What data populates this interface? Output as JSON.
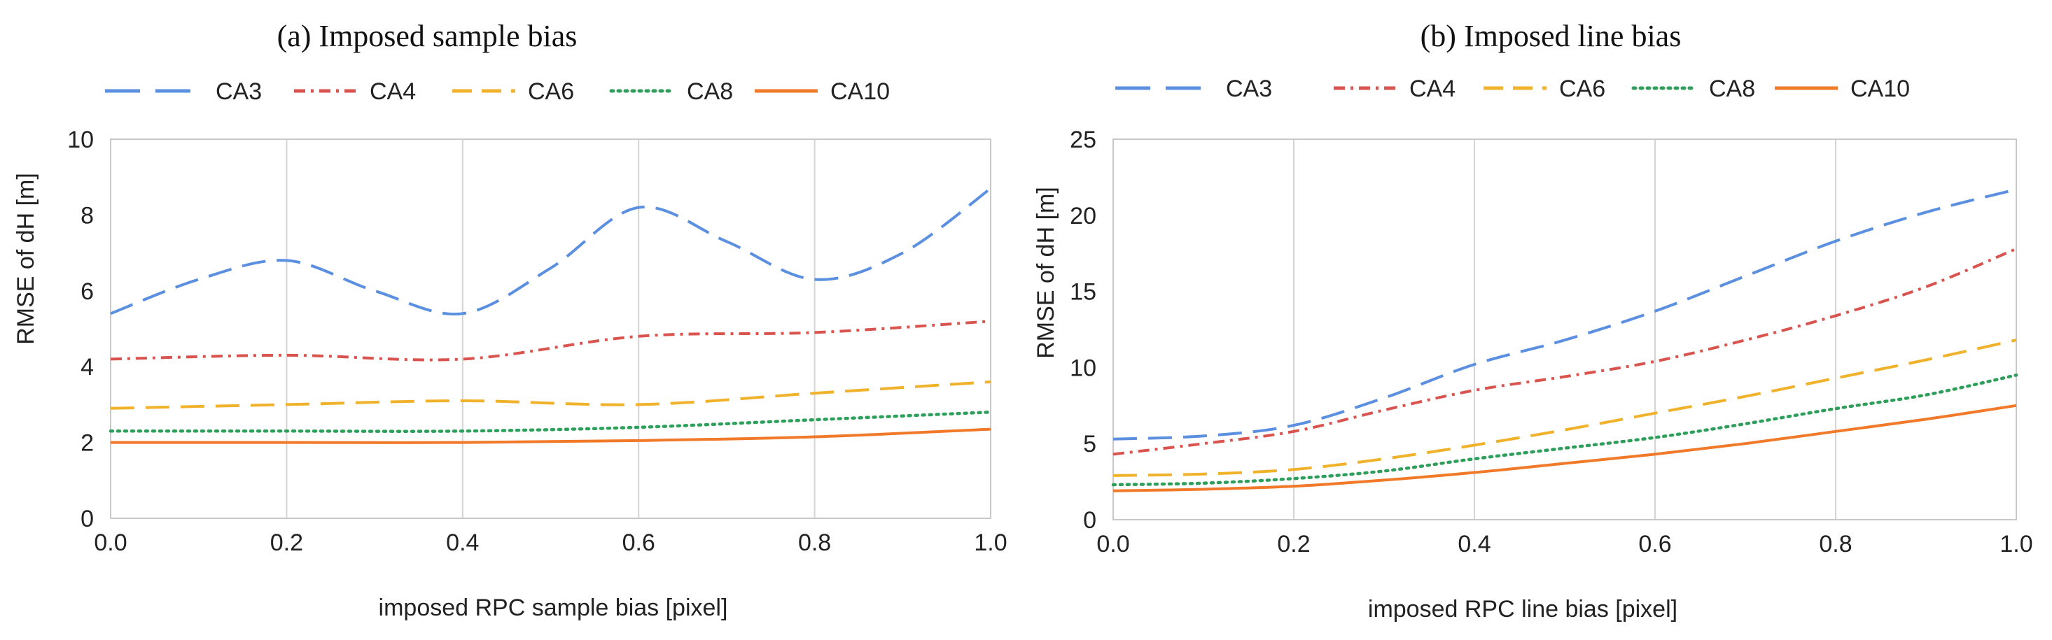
{
  "chart_data": [
    {
      "type": "line",
      "title": "(a) Imposed sample bias",
      "xlabel": "imposed RPC sample bias [pixel]",
      "ylabel": "RMSE of dH [m]",
      "xlim": [
        0.0,
        1.0
      ],
      "ylim": [
        0,
        10
      ],
      "x_ticks": [
        "0.0",
        "0.2",
        "0.4",
        "0.6",
        "0.8",
        "1.0"
      ],
      "y_ticks": [
        "0",
        "2",
        "4",
        "6",
        "8",
        "10"
      ],
      "grid": "vertical",
      "legend_position": "top",
      "series": [
        {
          "name": "CA3",
          "color": "#5b8fe0",
          "style": "dashed",
          "x": [
            0.0,
            0.1,
            0.2,
            0.3,
            0.4,
            0.5,
            0.6,
            0.7,
            0.8,
            0.9,
            1.0
          ],
          "y": [
            5.4,
            6.3,
            6.8,
            6.0,
            5.4,
            6.6,
            8.2,
            7.3,
            6.3,
            7.0,
            8.7
          ]
        },
        {
          "name": "CA4",
          "color": "#d9534f",
          "style": "dash-dot",
          "x": [
            0.0,
            0.2,
            0.4,
            0.6,
            0.8,
            1.0
          ],
          "y": [
            4.2,
            4.3,
            4.2,
            4.8,
            4.9,
            5.2
          ]
        },
        {
          "name": "CA6",
          "color": "#f0b22a",
          "style": "dashed",
          "x": [
            0.0,
            0.2,
            0.4,
            0.6,
            0.8,
            1.0
          ],
          "y": [
            2.9,
            3.0,
            3.1,
            3.0,
            3.3,
            3.6
          ]
        },
        {
          "name": "CA8",
          "color": "#2e9e5b",
          "style": "dotted",
          "x": [
            0.0,
            0.2,
            0.4,
            0.6,
            0.8,
            1.0
          ],
          "y": [
            2.3,
            2.3,
            2.3,
            2.4,
            2.6,
            2.8
          ]
        },
        {
          "name": "CA10",
          "color": "#f07a2a",
          "style": "solid",
          "x": [
            0.0,
            0.2,
            0.4,
            0.6,
            0.8,
            1.0
          ],
          "y": [
            2.0,
            2.0,
            2.0,
            2.05,
            2.15,
            2.35
          ]
        }
      ]
    },
    {
      "type": "line",
      "title": "(b) Imposed line bias",
      "xlabel": "imposed RPC line bias [pixel]",
      "ylabel": "RMSE of dH [m]",
      "xlim": [
        0.0,
        1.0
      ],
      "ylim": [
        0,
        25
      ],
      "x_ticks": [
        "0.0",
        "0.2",
        "0.4",
        "0.6",
        "0.8",
        "1.0"
      ],
      "y_ticks": [
        "0",
        "5",
        "10",
        "15",
        "20",
        "25"
      ],
      "grid": "vertical",
      "legend_position": "top",
      "series": [
        {
          "name": "CA3",
          "color": "#5b8fe0",
          "style": "dashed",
          "x": [
            0.0,
            0.1,
            0.2,
            0.3,
            0.4,
            0.5,
            0.6,
            0.7,
            0.8,
            0.9,
            1.0
          ],
          "y": [
            5.3,
            5.5,
            6.2,
            8.0,
            10.2,
            11.8,
            13.7,
            16.0,
            18.3,
            20.2,
            21.7
          ]
        },
        {
          "name": "CA4",
          "color": "#d9534f",
          "style": "dash-dot",
          "x": [
            0.0,
            0.1,
            0.2,
            0.3,
            0.4,
            0.5,
            0.6,
            0.7,
            0.8,
            0.9,
            1.0
          ],
          "y": [
            4.3,
            5.0,
            5.8,
            7.2,
            8.5,
            9.4,
            10.4,
            11.8,
            13.4,
            15.3,
            17.8
          ]
        },
        {
          "name": "CA6",
          "color": "#f0b22a",
          "style": "dashed",
          "x": [
            0.0,
            0.1,
            0.2,
            0.3,
            0.4,
            0.5,
            0.6,
            0.7,
            0.8,
            0.9,
            1.0
          ],
          "y": [
            2.9,
            3.0,
            3.3,
            4.0,
            4.9,
            5.9,
            7.0,
            8.1,
            9.3,
            10.5,
            11.8
          ]
        },
        {
          "name": "CA8",
          "color": "#2e9e5b",
          "style": "dotted",
          "x": [
            0.0,
            0.1,
            0.2,
            0.3,
            0.4,
            0.5,
            0.6,
            0.7,
            0.8,
            0.9,
            1.0
          ],
          "y": [
            2.3,
            2.4,
            2.7,
            3.2,
            4.0,
            4.7,
            5.4,
            6.3,
            7.3,
            8.2,
            9.5
          ]
        },
        {
          "name": "CA10",
          "color": "#f07a2a",
          "style": "solid",
          "x": [
            0.0,
            0.1,
            0.2,
            0.3,
            0.4,
            0.5,
            0.6,
            0.7,
            0.8,
            0.9,
            1.0
          ],
          "y": [
            1.9,
            2.0,
            2.2,
            2.6,
            3.1,
            3.7,
            4.3,
            5.0,
            5.8,
            6.6,
            7.5
          ]
        }
      ]
    }
  ]
}
